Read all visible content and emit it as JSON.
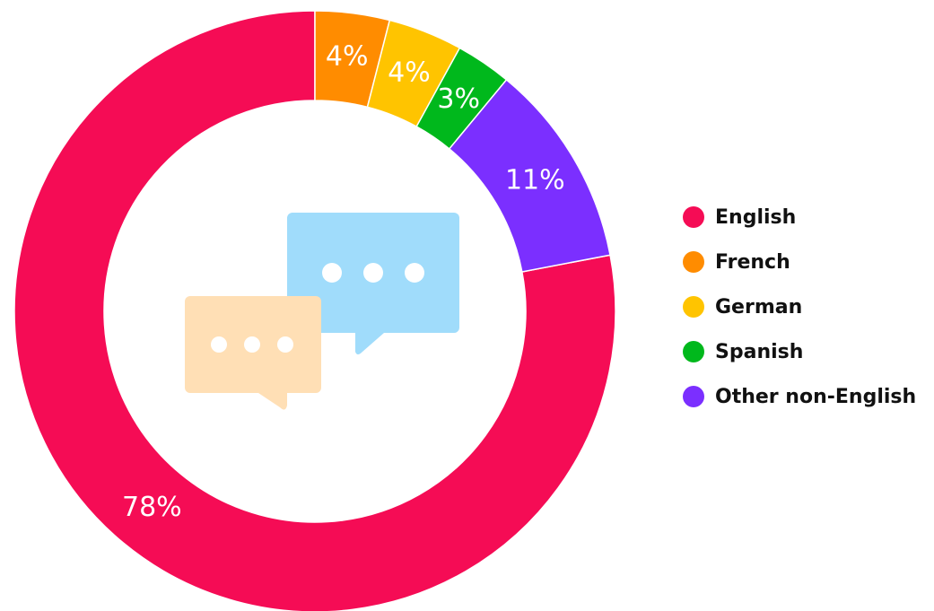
{
  "chart_data": {
    "type": "donut",
    "categories": [
      "English",
      "French",
      "German",
      "Spanish",
      "Other non-English"
    ],
    "values": [
      78,
      4,
      4,
      3,
      11
    ],
    "value_labels": [
      "78%",
      "4%",
      "4%",
      "3%",
      "11%"
    ],
    "colors": [
      "#f50c55",
      "#ff8c00",
      "#ffc400",
      "#00b81c",
      "#7b2fff"
    ],
    "legend": "right"
  }
}
